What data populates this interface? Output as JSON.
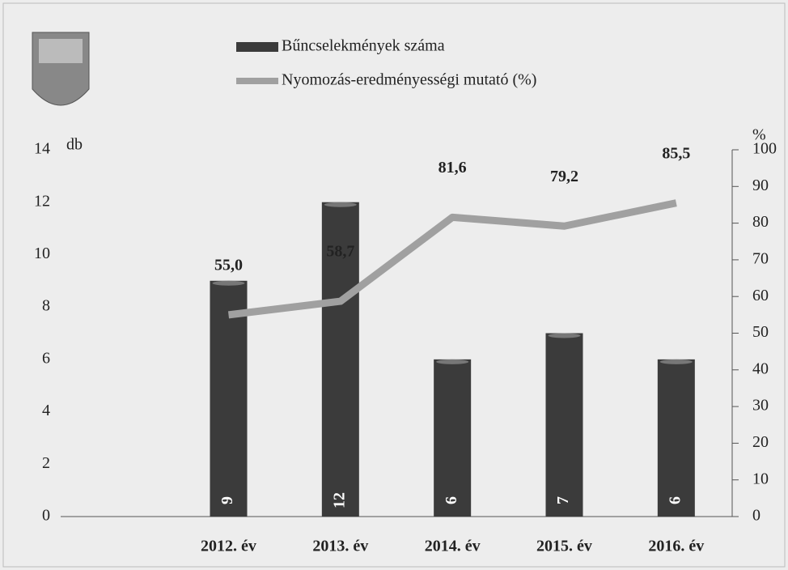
{
  "chart_data": {
    "type": "bar_line",
    "categories": [
      null,
      "2012. év",
      "2013. év",
      "2014. év",
      "2015. év",
      "2016. év"
    ],
    "series": [
      {
        "name": "Bűncselekmények száma",
        "type": "bar",
        "color": "#3b3b3b",
        "values": [
          null,
          9,
          12,
          6,
          7,
          6
        ]
      },
      {
        "name": "Nyomozás-eredményességi mutató (%)",
        "type": "line",
        "axis": "y2",
        "color": "#a0a0a0",
        "values": [
          null,
          55.0,
          58.7,
          81.6,
          79.2,
          85.5
        ],
        "value_labels": [
          null,
          "55,0",
          "58,7",
          "81,6",
          "79,2",
          "85,5"
        ]
      }
    ],
    "y_label": "db",
    "ylim": [
      0,
      14
    ],
    "yticks": [
      0,
      2,
      4,
      6,
      8,
      10,
      12,
      14
    ],
    "y2_label": "%",
    "y2lim": [
      0,
      100
    ],
    "y2ticks": [
      0,
      10,
      20,
      30,
      40,
      50,
      60,
      70,
      80,
      90,
      100
    ],
    "legend": "top"
  }
}
